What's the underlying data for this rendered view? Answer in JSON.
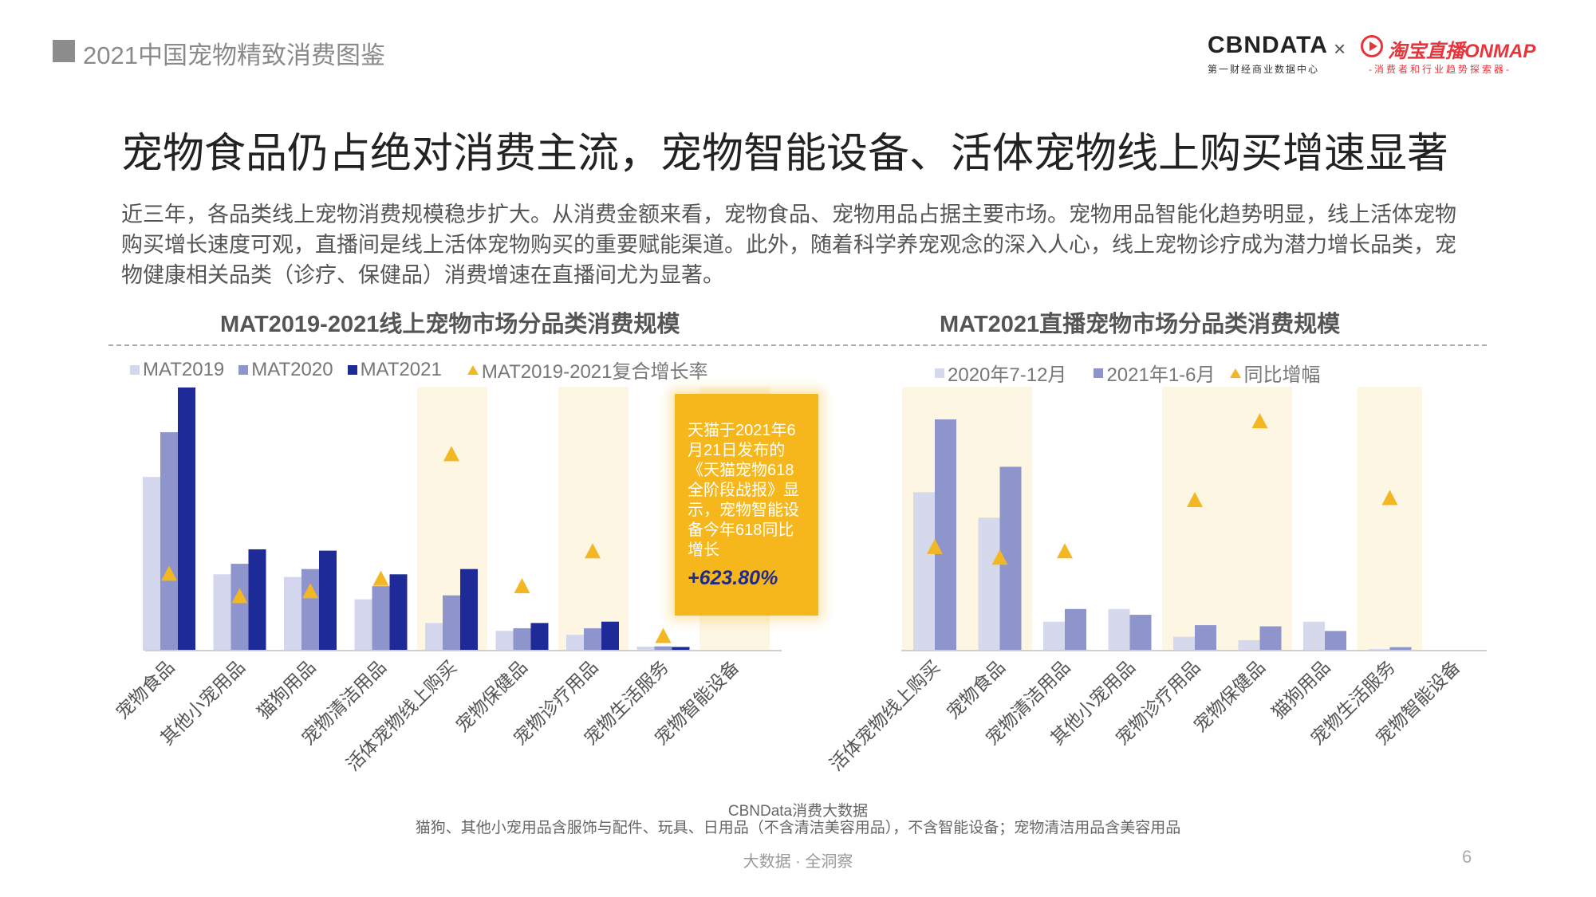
{
  "header": {
    "report_title": "2021中国宠物精致消费图鉴",
    "logo_cbn": "CBNDATA",
    "logo_cbn_sub": "第一财经商业数据中心",
    "logo_x": "×",
    "logo_tb": "淘宝直播ONMAP",
    "logo_tb_sub": "-消费者和行业趋势探索器-"
  },
  "main_title": "宠物食品仍占绝对消费主流，宠物智能设备、活体宠物线上购买增速显著",
  "intro": "近三年，各品类线上宠物消费规模稳步扩大。从消费金额来看，宠物食品、宠物用品占据主要市场。宠物用品智能化趋势明显，线上活体宠物购买增长速度可观，直播间是线上活体宠物购买的重要赋能渠道。此外，随着科学养宠观念的深入人心，线上宠物诊疗成为潜力增长品类，宠物健康相关品类（诊疗、保健品）消费增速在直播间尤为显著。",
  "colors": {
    "mat2019": "#d3d6ec",
    "mat2020": "#8e94cc",
    "mat2021": "#1e2a97",
    "growth": "#f2b722",
    "highlight": "#fdf6e3",
    "h2020": "#d6d8ec",
    "h2021": "#8e94cc"
  },
  "chart_data": [
    {
      "type": "bar",
      "title": "MAT2019-2021线上宠物市场分品类消费规模",
      "categories": [
        "宠物食品",
        "其他小宠用品",
        "猫狗用品",
        "宠物清洁用品",
        "活体宠物线上购买",
        "宠物保健品",
        "宠物诊疗用品",
        "宠物生活服务",
        "宠物智能设备"
      ],
      "highlighted_categories": [
        "活体宠物线上购买",
        "宠物诊疗用品",
        "宠物智能设备"
      ],
      "series": [
        {
          "name": "MAT2019",
          "values": [
            66,
            29,
            28,
            19.5,
            10.5,
            7.5,
            6,
            1.5,
            0
          ]
        },
        {
          "name": "MAT2020",
          "values": [
            83,
            33,
            31,
            24.5,
            21,
            8.5,
            8.5,
            1.6,
            0
          ]
        },
        {
          "name": "MAT2021",
          "values": [
            100,
            38.5,
            38,
            29,
            31,
            10.5,
            11,
            1.4,
            0
          ]
        }
      ],
      "growth_series": {
        "name": "MAT2019-2021复合增长率",
        "values": [
          29,
          20,
          22,
          27,
          77,
          24,
          38,
          4,
          null
        ]
      },
      "annotation": {
        "category": "宠物智能设备",
        "text": "天猫于2021年6月21日发布的《天猫宠物618全阶段战报》显示，宠物智能设备今年618同比增长",
        "value": "+623.80%"
      }
    },
    {
      "type": "bar",
      "title": "MAT2021直播宠物市场分品类消费规模",
      "categories": [
        "活体宠物线上购买",
        "宠物食品",
        "宠物清洁用品",
        "其他小宠用品",
        "宠物诊疗用品",
        "宠物保健品",
        "猫狗用品",
        "宠物生活服务",
        "宠物智能设备"
      ],
      "highlighted_categories": [
        "活体宠物线上购买",
        "宠物食品",
        "宠物诊疗用品",
        "宠物保健品",
        "宠物生活服务"
      ],
      "series": [
        {
          "name": "2020年7-12月",
          "values": [
            68.5,
            57.5,
            12.5,
            18,
            6,
            4.5,
            12.5,
            0.7,
            0
          ]
        },
        {
          "name": "2021年1-6月",
          "values": [
            100,
            79.5,
            18,
            15.5,
            11,
            10.5,
            8.5,
            1.5,
            0
          ]
        }
      ],
      "growth_series": {
        "name": "同比增幅",
        "values": [
          42,
          37,
          40,
          null,
          64,
          101,
          null,
          65,
          null
        ]
      }
    }
  ],
  "source": "CBNData消费大数据",
  "note": "猫狗、其他小宠用品含服饰与配件、玩具、日用品（不含清洁美容用品），不含智能设备；宠物清洁用品含美容用品",
  "footer": "大数据 · 全洞察",
  "page_number": "6"
}
